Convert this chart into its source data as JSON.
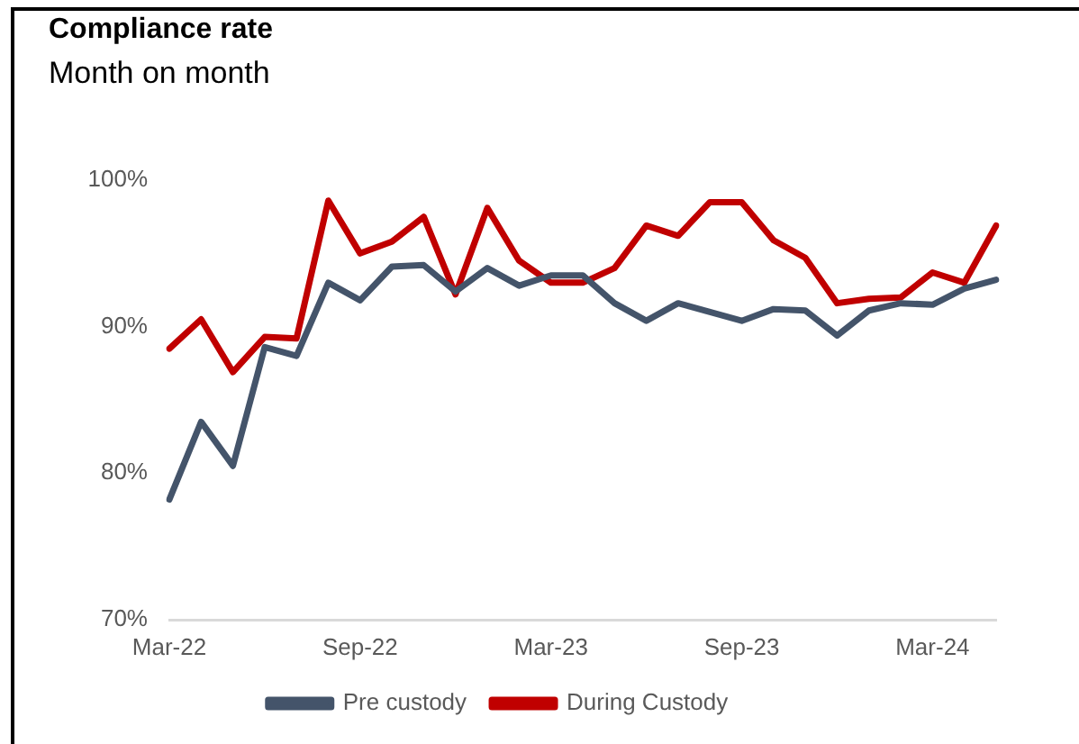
{
  "chart_data": {
    "type": "line",
    "title": "Compliance rate",
    "subtitle": "Month on month",
    "categories": [
      "Mar-22",
      null,
      null,
      null,
      null,
      null,
      "Sep-22",
      null,
      null,
      null,
      null,
      null,
      "Mar-23",
      null,
      null,
      null,
      null,
      null,
      "Sep-23",
      null,
      null,
      null,
      null,
      null,
      "Mar-24",
      null,
      null
    ],
    "series": [
      {
        "name": "Pre custody",
        "color": "#44546a",
        "values": [
          78.2,
          83.5,
          80.5,
          88.6,
          88.0,
          93.0,
          91.8,
          94.1,
          94.2,
          92.4,
          94.0,
          92.8,
          93.5,
          93.5,
          91.6,
          90.4,
          91.6,
          91.0,
          90.4,
          91.2,
          91.1,
          89.4,
          91.1,
          91.6,
          91.5,
          92.6,
          93.2
        ]
      },
      {
        "name": "During Custody",
        "color": "#c00000",
        "values": [
          88.5,
          90.5,
          86.9,
          89.3,
          89.2,
          98.6,
          95.0,
          95.8,
          97.5,
          92.2,
          98.1,
          94.5,
          93.0,
          93.0,
          94.0,
          96.9,
          96.2,
          98.5,
          98.5,
          95.9,
          94.7,
          91.6,
          91.9,
          92.0,
          93.7,
          93.0,
          96.9
        ]
      }
    ],
    "ylim": [
      70,
      100
    ],
    "yticks": [
      {
        "value": 70,
        "label": "70%"
      },
      {
        "value": 80,
        "label": "80%"
      },
      {
        "value": 90,
        "label": "90%"
      },
      {
        "value": 100,
        "label": "100%"
      }
    ],
    "grid": false,
    "legend": "bottom",
    "marker": "none",
    "line_style": "solid"
  }
}
